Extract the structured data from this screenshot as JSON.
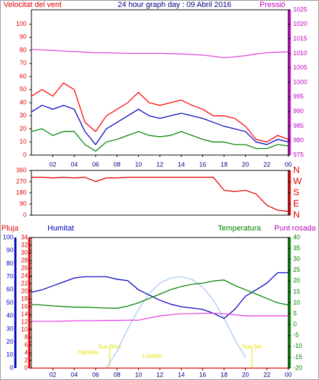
{
  "chart_data": [
    {
      "type": "line",
      "title": "24 hour graph day : 09 Abril 2016",
      "y_label": "Velocitat del vent",
      "y2_label": "Pressió",
      "x": [
        0,
        1,
        2,
        3,
        4,
        5,
        6,
        7,
        8,
        9,
        10,
        11,
        12,
        13,
        14,
        15,
        16,
        17,
        18,
        19,
        20,
        21,
        22,
        23,
        24
      ],
      "xlim": [
        0,
        24
      ],
      "xticks": [
        {
          "value": 2,
          "label": "02"
        },
        {
          "value": 4,
          "label": "04"
        },
        {
          "value": 6,
          "label": "06"
        },
        {
          "value": 8,
          "label": "08"
        },
        10,
        12,
        14,
        16,
        18,
        20,
        22,
        {
          "value": 24,
          "label": "00"
        }
      ],
      "ylim": [
        0,
        111
      ],
      "yticks": [
        0,
        10,
        20,
        30,
        40,
        50,
        60,
        70,
        80,
        90,
        100
      ],
      "y_color": "#e00000",
      "y2lim": [
        975,
        1025
      ],
      "y2ticks": [
        975,
        980,
        985,
        990,
        995,
        1000,
        1005,
        1010,
        1015,
        1020,
        1025
      ],
      "y2_color": "#c000c0",
      "series": [
        {
          "color": "#ff0000",
          "values": [
            45,
            50,
            45,
            55,
            50,
            25,
            18,
            30,
            35,
            40,
            48,
            40,
            38,
            40,
            42,
            38,
            35,
            30,
            30,
            28,
            22,
            12,
            10,
            15,
            12
          ]
        },
        {
          "color": "#0000c0",
          "values": [
            33,
            38,
            35,
            38,
            35,
            18,
            8,
            20,
            25,
            30,
            35,
            30,
            28,
            30,
            32,
            30,
            28,
            25,
            22,
            20,
            18,
            10,
            8,
            12,
            10
          ]
        },
        {
          "color": "#008000",
          "values": [
            18,
            20,
            15,
            18,
            18,
            8,
            3,
            10,
            12,
            15,
            18,
            15,
            14,
            15,
            18,
            15,
            12,
            10,
            10,
            8,
            8,
            5,
            5,
            8,
            7
          ]
        },
        {
          "color": "#e040e0",
          "axis": "y2",
          "values": [
            1011.4,
            1011.2,
            1011,
            1010.8,
            1010.6,
            1010.4,
            1010.2,
            1010.2,
            1010.1,
            1010,
            1010,
            1010,
            1010,
            1009.9,
            1009.8,
            1009.6,
            1009.4,
            1009,
            1008.5,
            1008.8,
            1009.2,
            1009.8,
            1010.2,
            1010.4,
            1010.5
          ]
        }
      ]
    },
    {
      "type": "line",
      "x": [
        0,
        1,
        2,
        3,
        4,
        5,
        6,
        7,
        8,
        9,
        10,
        11,
        12,
        13,
        14,
        15,
        16,
        17,
        18,
        19,
        20,
        21,
        22,
        23,
        24
      ],
      "xlim": [
        0,
        24
      ],
      "ylim": [
        0,
        360
      ],
      "yticks": [
        0,
        90,
        180,
        270,
        360
      ],
      "y_color": "#e00000",
      "y2lim": [
        0,
        360
      ],
      "y2ticks": [
        {
          "value": 360,
          "label": "N"
        },
        {
          "value": 270,
          "label": "W"
        },
        {
          "value": 180,
          "label": "S"
        },
        {
          "value": 90,
          "label": "E"
        },
        {
          "value": 0,
          "label": "N"
        }
      ],
      "y2_color": "#e00000",
      "series": [
        {
          "color": "#e00000",
          "values": [
            305,
            305,
            300,
            305,
            300,
            305,
            270,
            300,
            300,
            305,
            305,
            305,
            305,
            305,
            305,
            305,
            305,
            305,
            200,
            190,
            200,
            170,
            80,
            40,
            30
          ]
        }
      ]
    },
    {
      "type": "line",
      "y_label": "Humitat",
      "y3_label": "Pluja",
      "y2_label": "Temperatura",
      "y2b_label": "Punt rosada",
      "x": [
        0,
        1,
        2,
        3,
        4,
        5,
        6,
        7,
        8,
        9,
        10,
        11,
        12,
        13,
        14,
        15,
        16,
        17,
        18,
        19,
        20,
        21,
        22,
        23,
        24
      ],
      "xlim": [
        0,
        24
      ],
      "xticks": [
        {
          "value": 2,
          "label": "02"
        },
        {
          "value": 4,
          "label": "04"
        },
        {
          "value": 6,
          "label": "06"
        },
        {
          "value": 8,
          "label": "08"
        },
        10,
        12,
        14,
        16,
        18,
        20,
        22,
        {
          "value": 24,
          "label": "00"
        }
      ],
      "ylim": [
        0,
        100
      ],
      "yticks": [
        0,
        10,
        20,
        30,
        40,
        50,
        60,
        70,
        80,
        90,
        100
      ],
      "y_color": "#0000c0",
      "y3lim": [
        0,
        34
      ],
      "y3ticks": [
        0,
        2,
        4,
        6,
        8,
        10,
        12,
        14,
        16,
        18,
        20,
        22,
        24,
        26,
        28,
        30,
        32,
        34
      ],
      "y3_color": "#e00000",
      "y2lim": [
        -20,
        40
      ],
      "y2ticks": [
        -20,
        -15,
        -10,
        -5,
        0,
        5,
        10,
        15,
        20,
        25,
        30,
        35,
        40
      ],
      "y2_color": "#008000",
      "series": [
        {
          "color": "#a8c8f0",
          "values": [
            null,
            null,
            null,
            null,
            null,
            null,
            null,
            0,
            13,
            30,
            45,
            57,
            65,
            69,
            70,
            68,
            62,
            52,
            38,
            22,
            8,
            null,
            null,
            null,
            null
          ]
        },
        {
          "color": "#0000c0",
          "values": [
            58,
            60,
            63,
            66,
            69,
            70,
            70,
            70,
            68,
            67,
            60,
            56,
            52,
            49,
            47,
            46,
            45,
            42,
            38,
            45,
            55,
            60,
            65,
            73,
            73
          ]
        },
        {
          "color": "#008000",
          "axis": "y2",
          "values": [
            9.2,
            9,
            8.6,
            8.3,
            8,
            8,
            7.8,
            7.6,
            7.5,
            8.5,
            10,
            12,
            14,
            16,
            17.5,
            18.5,
            19,
            20,
            20.5,
            18,
            16,
            14,
            12,
            10,
            9
          ]
        },
        {
          "color": "#e040e0",
          "axis": "y2",
          "values": [
            1.5,
            1.5,
            1.5,
            1.6,
            1.7,
            1.8,
            1.8,
            1.9,
            1.9,
            2,
            2,
            3,
            4,
            4.5,
            5,
            5,
            5.2,
            5.2,
            5,
            4.5,
            4,
            4,
            4,
            4,
            4
          ]
        },
        {
          "color": "#e00000",
          "axis": "y3",
          "values": [
            0,
            0,
            0,
            0,
            0,
            0,
            0,
            0,
            0,
            0,
            0,
            0,
            0,
            0,
            0,
            0,
            0,
            0,
            0,
            0,
            0,
            0,
            0,
            0,
            0
          ]
        }
      ],
      "annotations": [
        {
          "text": "Hightide",
          "x": 5.3,
          "line": false
        },
        {
          "text": "Sun Rise",
          "x": 7.3,
          "line": true
        },
        {
          "text": "Lowtide",
          "x": 11.3,
          "line": false
        },
        {
          "text": "Sun Set",
          "x": 20.6,
          "line": true
        }
      ],
      "annotation_color": "#e8e000"
    }
  ]
}
